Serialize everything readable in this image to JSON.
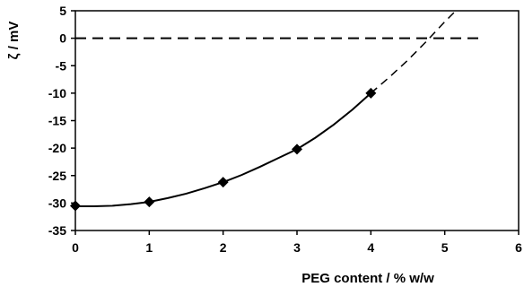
{
  "chart_data": {
    "type": "scatter",
    "xlabel": "PEG content / % w/w",
    "ylabel": "ζ / mV",
    "xlim": [
      0,
      6
    ],
    "ylim": [
      -35,
      5
    ],
    "x_ticks": [
      "0",
      "1",
      "2",
      "3",
      "4",
      "5",
      "6"
    ],
    "y_ticks": [
      "5",
      "0",
      "-5",
      "-10",
      "-15",
      "-20",
      "-25",
      "-30",
      "-35"
    ],
    "grid": false,
    "legend": "none",
    "series": [
      {
        "style": "markers",
        "marker": "diamond",
        "x": [
          0,
          1,
          2,
          3,
          4
        ],
        "y": [
          -30.5,
          -29.8,
          -26.2,
          -20.2,
          -10
        ]
      }
    ],
    "fit_curve": {
      "style": "solid",
      "x": [
        0,
        0.25,
        0.5,
        0.75,
        1,
        1.25,
        1.5,
        1.75,
        2,
        2.25,
        2.5,
        2.75,
        3,
        3.25,
        3.5,
        3.75,
        4
      ],
      "y": [
        -30.6,
        -30.6,
        -30.5,
        -30.2,
        -29.8,
        -29.1,
        -28.3,
        -27.3,
        -26.2,
        -24.9,
        -23.4,
        -21.8,
        -20.2,
        -18.1,
        -15.7,
        -13.0,
        -10.0
      ]
    },
    "extrapolation": {
      "style": "dashed",
      "x": [
        4,
        4.25,
        4.5,
        4.75,
        5,
        5.15
      ],
      "y": [
        -10.0,
        -7.1,
        -4.0,
        -0.6,
        3.0,
        5.0
      ]
    },
    "reference_line": {
      "style": "dashed",
      "y": 0,
      "x_range": [
        0,
        5.5
      ]
    },
    "colors": {
      "line": "#000000",
      "marker": "#000000",
      "background": "#ffffff"
    }
  }
}
